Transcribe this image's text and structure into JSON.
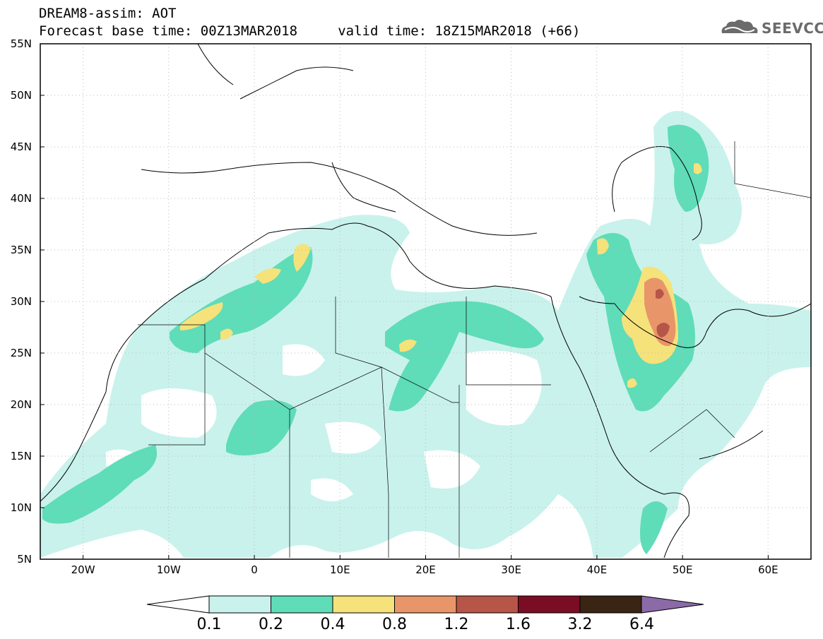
{
  "header": {
    "line1": "DREAM8-assim: AOT",
    "line2": "Forecast base time: 00Z13MAR2018     valid time: 18Z15MAR2018 (+66)",
    "logo_text": "SEEVCCC"
  },
  "map": {
    "lon_range": [
      -25,
      65
    ],
    "lat_range": [
      5,
      55
    ],
    "lon_ticks": [
      "20W",
      "10W",
      "0",
      "10E",
      "20E",
      "30E",
      "40E",
      "50E",
      "60E"
    ],
    "lat_ticks": [
      "5N",
      "10N",
      "15N",
      "20N",
      "25N",
      "30N",
      "35N",
      "40N",
      "45N",
      "50N",
      "55N"
    ],
    "field": "AOT"
  },
  "colorbar": {
    "levels": [
      "0.1",
      "0.2",
      "0.4",
      "0.8",
      "1.2",
      "1.6",
      "3.2",
      "6.4"
    ],
    "colors": [
      "#c9f2ec",
      "#5fdcb8",
      "#f5e27a",
      "#e9956a",
      "#b65548",
      "#7a0d24",
      "#3a2414",
      "#8b6aa8"
    ]
  }
}
